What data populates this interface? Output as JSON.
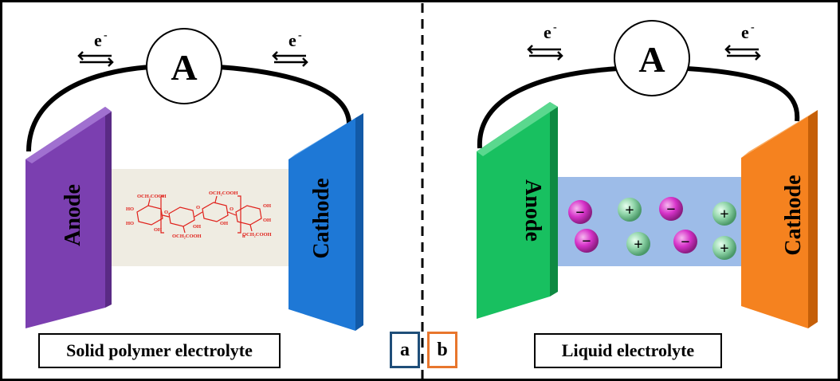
{
  "panel_a": {
    "ammeter": "A",
    "electron_left": "e",
    "electron_left_sup": "-",
    "electron_right": "e",
    "electron_right_sup": "-",
    "anode_label": "Anode",
    "cathode_label": "Cathode",
    "electrolyte_caption": "Solid polymer electrolyte",
    "tag": "a",
    "colors": {
      "anode": "#7b3fb0",
      "cathode": "#1e78d6",
      "electrolyte": "#efece2",
      "tag_border": "#1f4e79"
    },
    "polymer": {
      "substituent_top": "OCH₂COOH",
      "substituent_bottom": "OCH₂COOH",
      "oh": "OH",
      "ho": "HO",
      "o": "O",
      "n": "n",
      "color": "#e0201a"
    }
  },
  "panel_b": {
    "ammeter": "A",
    "electron_left": "e",
    "electron_left_sup": "-",
    "electron_right": "e",
    "electron_right_sup": "-",
    "anode_label": "Anode",
    "cathode_label": "Cathode",
    "electrolyte_caption": "Liquid electrolyte",
    "tag": "b",
    "colors": {
      "anode": "#18c060",
      "cathode": "#f5821f",
      "electrolyte": "#9dbce8",
      "tag_border": "#e8762d",
      "anion": "#d633c9",
      "cation": "#8fd4a8"
    },
    "anion_symbol": "−",
    "cation_symbol": "+"
  }
}
